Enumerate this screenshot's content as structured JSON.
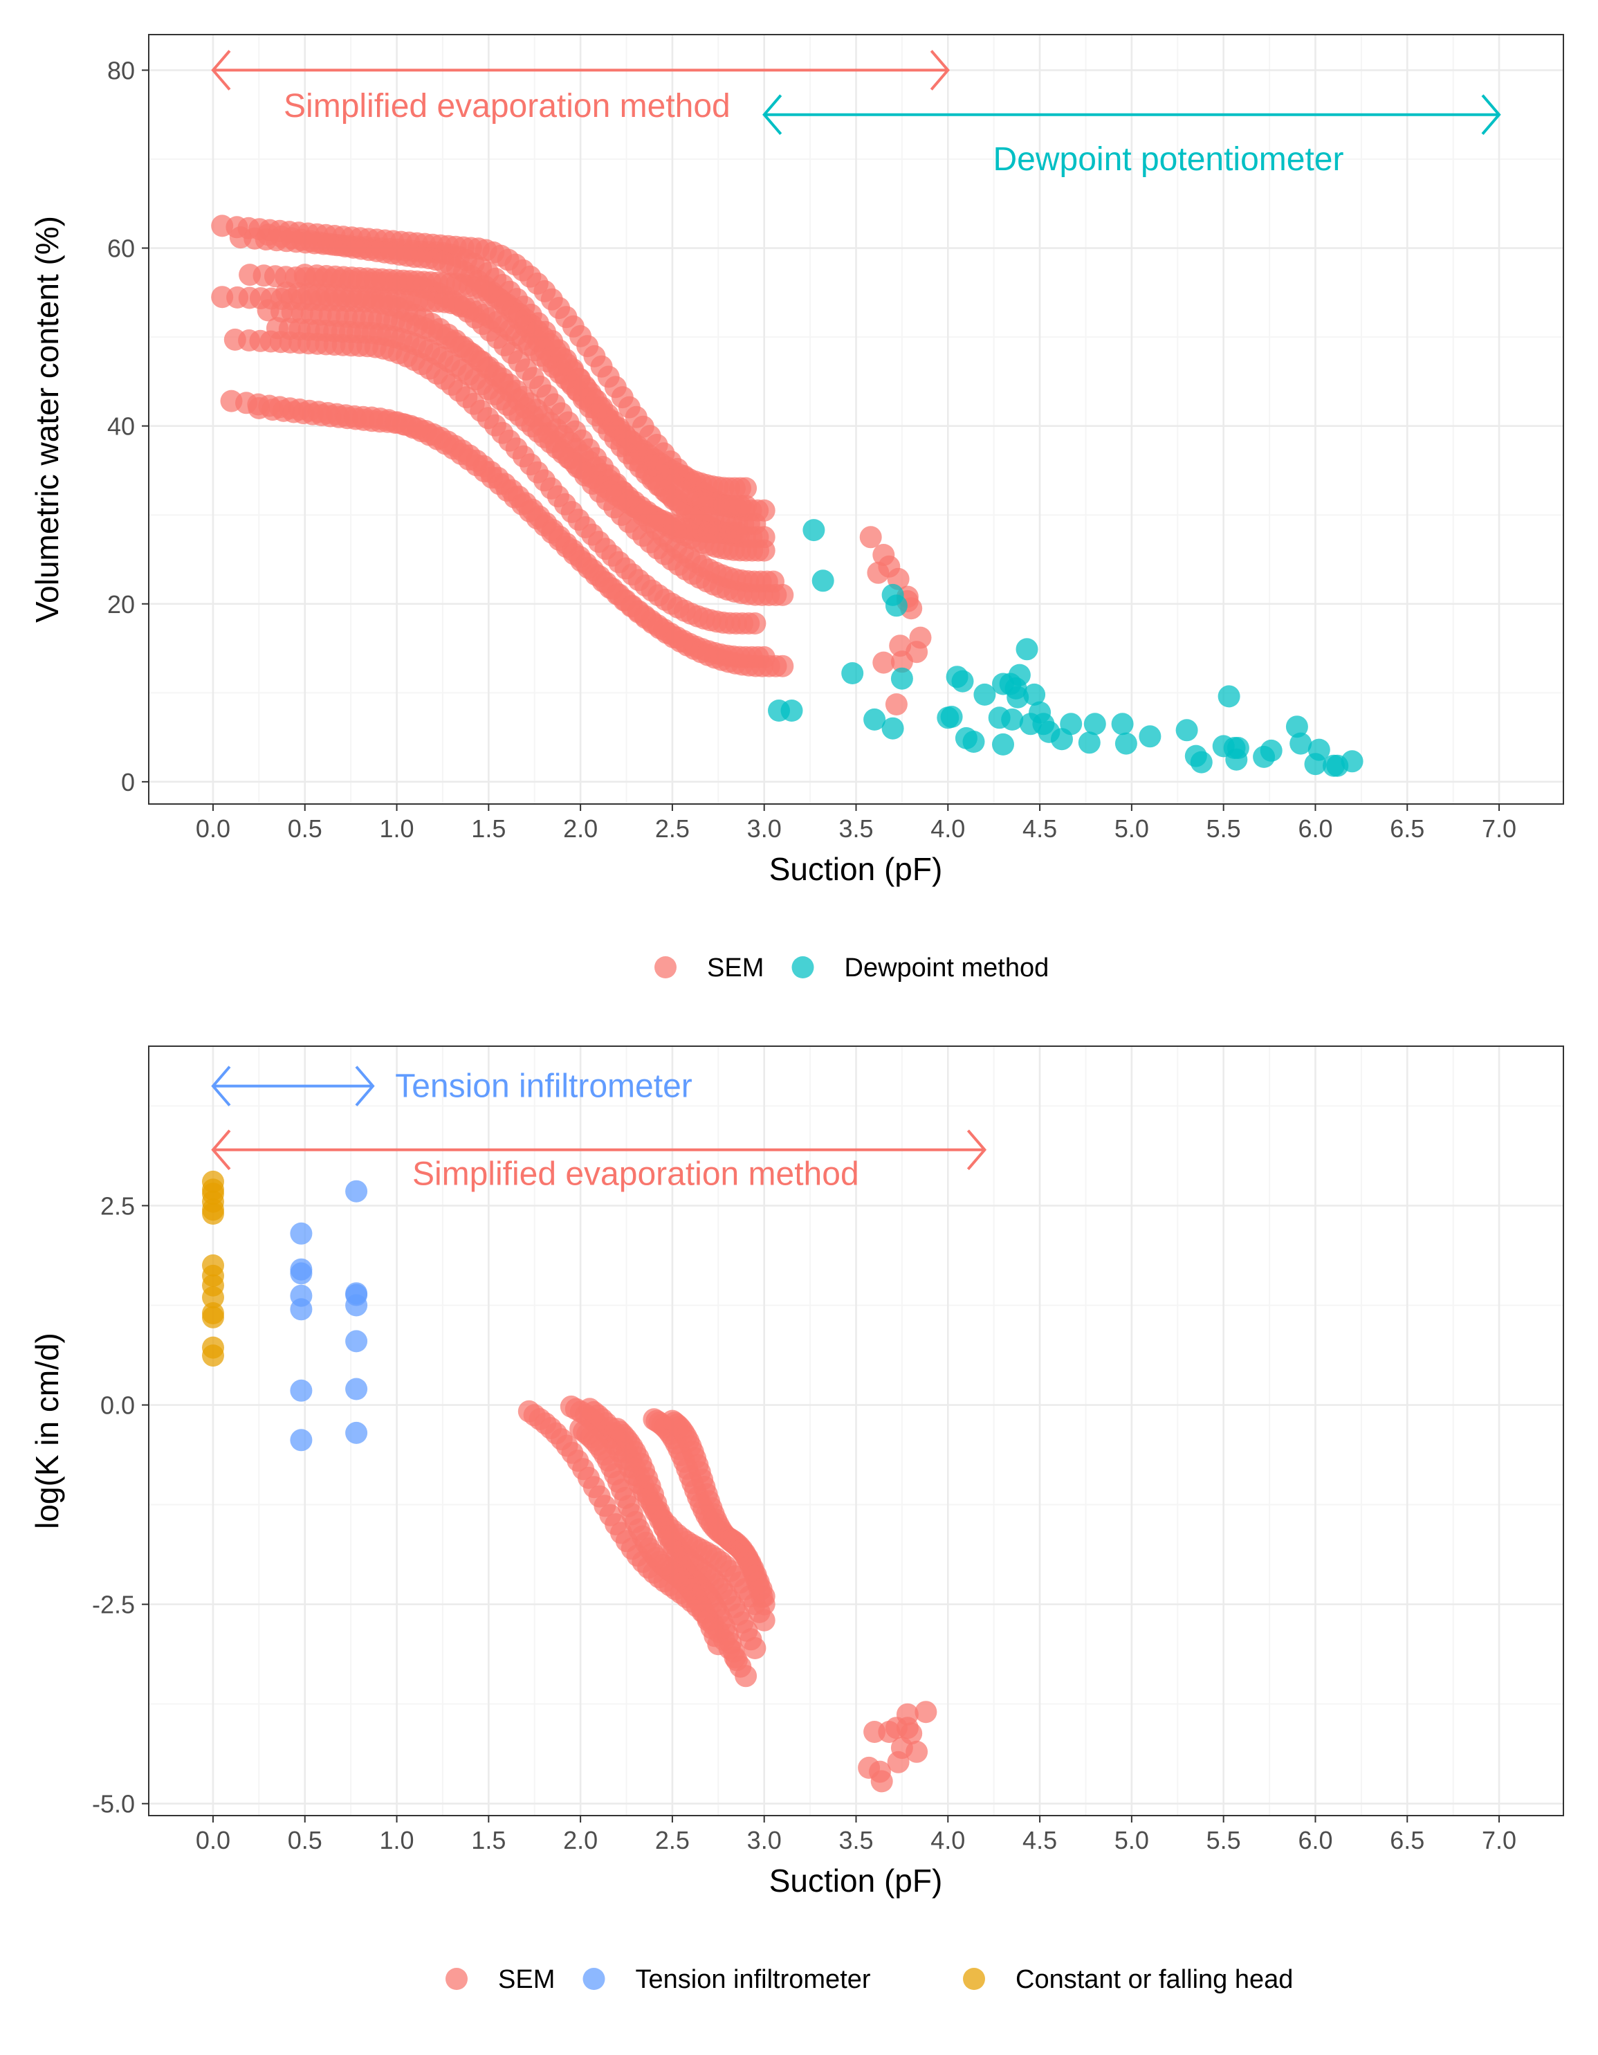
{
  "colors": {
    "sem": "#F8766D",
    "dewpoint": "#00BFC4",
    "tension": "#619CFF",
    "constant": "#E69F00",
    "grid_major": "#EBEBEB",
    "grid_minor": "#F5F5F5",
    "panel_border": "#333333"
  },
  "chart_data": [
    {
      "type": "scatter",
      "xlabel": "Suction (pF)",
      "ylabel": "Volumetric water content (%)",
      "xlim": [
        -0.35,
        7.35
      ],
      "ylim": [
        -2.5,
        84
      ],
      "x_ticks": [
        0,
        0.5,
        1,
        1.5,
        2,
        2.5,
        3,
        3.5,
        4,
        4.5,
        5,
        5.5,
        6,
        6.5,
        7
      ],
      "x_tick_labels": [
        "0.0",
        "0.5",
        "1.0",
        "1.5",
        "2.0",
        "2.5",
        "3.0",
        "3.5",
        "4.0",
        "4.5",
        "5.0",
        "5.5",
        "6.0",
        "6.5",
        "7.0"
      ],
      "y_ticks": [
        0,
        20,
        40,
        60,
        80
      ],
      "y_tick_labels": [
        "0",
        "20",
        "40",
        "60",
        "80"
      ],
      "grid": true,
      "legend_position": "bottom",
      "legend": [
        "SEM",
        "Dewpoint method"
      ],
      "annotations": [
        {
          "text": "Simplified evaporation method",
          "x": 1.6,
          "y": 76,
          "color": "sem",
          "arrow_from": 0,
          "arrow_to": 4.0,
          "arrow_y": 80
        },
        {
          "text": "Dewpoint potentiometer",
          "x": 5.2,
          "y": 70,
          "color": "dewpoint",
          "arrow_from": 3.0,
          "arrow_to": 7.0,
          "arrow_y": 75
        }
      ],
      "sem_curves": [
        {
          "start": [
            0.05,
            62.5
          ],
          "knee": 1.4,
          "flat": 60,
          "end": [
            3.0,
            30.5
          ]
        },
        {
          "start": [
            0.15,
            61.2
          ],
          "knee": 1.2,
          "flat": 59.5,
          "end": [
            3.0,
            27.5
          ]
        },
        {
          "start": [
            0.3,
            61.5
          ],
          "knee": 1.1,
          "flat": 59,
          "end": [
            2.95,
            29
          ]
        },
        {
          "start": [
            0.05,
            54.5
          ],
          "knee": 0.8,
          "flat": 54,
          "end": [
            3.1,
            21
          ]
        },
        {
          "start": [
            0.2,
            57
          ],
          "knee": 1.0,
          "flat": 56,
          "end": [
            3.05,
            22.5
          ]
        },
        {
          "start": [
            0.12,
            49.7
          ],
          "knee": 0.8,
          "flat": 49,
          "end": [
            2.95,
            17.8
          ]
        },
        {
          "start": [
            0.3,
            53
          ],
          "knee": 0.9,
          "flat": 52,
          "end": [
            3.0,
            26
          ]
        },
        {
          "start": [
            0.35,
            51
          ],
          "knee": 0.8,
          "flat": 50.5,
          "end": [
            2.85,
            28
          ]
        },
        {
          "start": [
            0.1,
            42.8
          ],
          "knee": 0.8,
          "flat": 41,
          "end": [
            3.1,
            13
          ]
        },
        {
          "start": [
            0.25,
            42
          ],
          "knee": 0.9,
          "flat": 40.5,
          "end": [
            3.0,
            14
          ]
        },
        {
          "start": [
            0.4,
            55
          ],
          "knee": 1.2,
          "flat": 54,
          "end": [
            2.9,
            33
          ]
        },
        {
          "start": [
            0.5,
            57
          ],
          "knee": 1.3,
          "flat": 56,
          "end": [
            2.9,
            31
          ]
        }
      ],
      "sem_extra": [
        [
          3.58,
          27.5
        ],
        [
          3.62,
          23.5
        ],
        [
          3.65,
          25.5
        ],
        [
          3.68,
          24.2
        ],
        [
          3.73,
          22.8
        ],
        [
          3.78,
          20.3
        ],
        [
          3.8,
          19.5
        ],
        [
          3.78,
          20.8
        ],
        [
          3.74,
          15.3
        ],
        [
          3.85,
          16.2
        ],
        [
          3.83,
          14.6
        ],
        [
          3.75,
          13.5
        ],
        [
          3.65,
          13.4
        ],
        [
          3.72,
          8.7
        ]
      ],
      "dewpoint_points": [
        [
          3.08,
          8.0
        ],
        [
          3.15,
          8.0
        ],
        [
          3.27,
          28.3
        ],
        [
          3.32,
          22.6
        ],
        [
          3.48,
          12.2
        ],
        [
          3.6,
          7.0
        ],
        [
          3.7,
          6.0
        ],
        [
          3.7,
          21.0
        ],
        [
          3.72,
          19.8
        ],
        [
          3.75,
          11.6
        ],
        [
          4.0,
          7.2
        ],
        [
          4.02,
          7.3
        ],
        [
          4.05,
          11.8
        ],
        [
          4.08,
          11.3
        ],
        [
          4.1,
          4.9
        ],
        [
          4.14,
          4.5
        ],
        [
          4.2,
          9.8
        ],
        [
          4.28,
          7.2
        ],
        [
          4.3,
          11.0
        ],
        [
          4.3,
          4.2
        ],
        [
          4.34,
          11.0
        ],
        [
          4.35,
          7.0
        ],
        [
          4.37,
          10.5
        ],
        [
          4.38,
          9.5
        ],
        [
          4.39,
          12.0
        ],
        [
          4.43,
          14.9
        ],
        [
          4.45,
          6.5
        ],
        [
          4.47,
          9.8
        ],
        [
          4.5,
          7.8
        ],
        [
          4.52,
          6.5
        ],
        [
          4.55,
          5.6
        ],
        [
          4.62,
          4.8
        ],
        [
          4.67,
          6.5
        ],
        [
          4.77,
          4.4
        ],
        [
          4.8,
          6.5
        ],
        [
          4.95,
          6.5
        ],
        [
          4.97,
          4.3
        ],
        [
          5.1,
          5.1
        ],
        [
          5.3,
          5.8
        ],
        [
          5.35,
          2.9
        ],
        [
          5.38,
          2.2
        ],
        [
          5.5,
          4.0
        ],
        [
          5.53,
          9.6
        ],
        [
          5.56,
          3.8
        ],
        [
          5.57,
          2.5
        ],
        [
          5.58,
          3.8
        ],
        [
          5.72,
          2.8
        ],
        [
          5.76,
          3.5
        ],
        [
          5.9,
          6.2
        ],
        [
          5.92,
          4.3
        ],
        [
          6.0,
          2.0
        ],
        [
          6.02,
          3.6
        ],
        [
          6.1,
          1.8
        ],
        [
          6.12,
          1.8
        ],
        [
          6.2,
          2.3
        ]
      ]
    },
    {
      "type": "scatter",
      "xlabel": "Suction (pF)",
      "ylabel": "log(K in cm/d)",
      "xlim": [
        -0.35,
        7.35
      ],
      "ylim": [
        -5.15,
        4.5
      ],
      "x_ticks": [
        0,
        0.5,
        1,
        1.5,
        2,
        2.5,
        3,
        3.5,
        4,
        4.5,
        5,
        5.5,
        6,
        6.5,
        7
      ],
      "x_tick_labels": [
        "0.0",
        "0.5",
        "1.0",
        "1.5",
        "2.0",
        "2.5",
        "3.0",
        "3.5",
        "4.0",
        "4.5",
        "5.0",
        "5.5",
        "6.0",
        "6.5",
        "7.0"
      ],
      "y_ticks": [
        -5,
        -2.5,
        0,
        2.5
      ],
      "y_tick_labels": [
        "-5.0",
        "-2.5",
        "0.0",
        "2.5"
      ],
      "grid": true,
      "legend_position": "bottom",
      "legend": [
        "SEM",
        "Tension infiltrometer",
        "Constant or falling head"
      ],
      "annotations": [
        {
          "text": "Tension infiltrometer",
          "x": 1.8,
          "y": 4.0,
          "color": "tension",
          "arrow_from": 0,
          "arrow_to": 0.87,
          "arrow_y": 4.0
        },
        {
          "text": "Simplified evaporation method",
          "x": 2.3,
          "y": 2.9,
          "color": "sem",
          "arrow_from": 0,
          "arrow_to": 4.2,
          "arrow_y": 3.2
        }
      ],
      "sem_bands": [
        {
          "from": [
            1.72,
            -0.08
          ],
          "to": [
            2.9,
            -3.4
          ]
        },
        {
          "from": [
            1.95,
            -0.02
          ],
          "to": [
            3.0,
            -2.7
          ]
        },
        {
          "from": [
            2.05,
            -0.05
          ],
          "to": [
            2.95,
            -3.05
          ]
        },
        {
          "from": [
            2.2,
            -0.3
          ],
          "to": [
            2.85,
            -3.2
          ]
        },
        {
          "from": [
            2.4,
            -0.18
          ],
          "to": [
            3.0,
            -2.4
          ]
        },
        {
          "from": [
            2.5,
            -0.2
          ],
          "to": [
            3.0,
            -2.5
          ]
        },
        {
          "from": [
            2.0,
            -0.3
          ],
          "to": [
            2.75,
            -3.0
          ]
        }
      ],
      "sem_extra": [
        [
          3.57,
          -4.55
        ],
        [
          3.6,
          -4.1
        ],
        [
          3.63,
          -4.6
        ],
        [
          3.64,
          -4.72
        ],
        [
          3.68,
          -4.1
        ],
        [
          3.72,
          -4.05
        ],
        [
          3.73,
          -4.48
        ],
        [
          3.75,
          -4.3
        ],
        [
          3.78,
          -3.88
        ],
        [
          3.8,
          -4.12
        ],
        [
          3.83,
          -4.35
        ],
        [
          3.88,
          -3.85
        ],
        [
          3.78,
          -4.05
        ]
      ],
      "tension_points": [
        [
          0.48,
          2.15
        ],
        [
          0.48,
          1.7
        ],
        [
          0.48,
          1.65
        ],
        [
          0.48,
          1.37
        ],
        [
          0.48,
          1.2
        ],
        [
          0.48,
          0.18
        ],
        [
          0.48,
          -0.44
        ],
        [
          0.78,
          2.68
        ],
        [
          0.78,
          1.4
        ],
        [
          0.78,
          1.38
        ],
        [
          0.78,
          1.25
        ],
        [
          0.78,
          0.8
        ],
        [
          0.78,
          0.2
        ],
        [
          0.78,
          -0.35
        ]
      ],
      "constant_points": [
        [
          0,
          2.8
        ],
        [
          0,
          2.7
        ],
        [
          0,
          2.65
        ],
        [
          0,
          2.55
        ],
        [
          0,
          2.45
        ],
        [
          0,
          2.4
        ],
        [
          0,
          1.75
        ],
        [
          0,
          1.62
        ],
        [
          0,
          1.5
        ],
        [
          0,
          1.35
        ],
        [
          0,
          1.15
        ],
        [
          0,
          1.1
        ],
        [
          0,
          0.72
        ],
        [
          0,
          0.62
        ]
      ]
    }
  ]
}
